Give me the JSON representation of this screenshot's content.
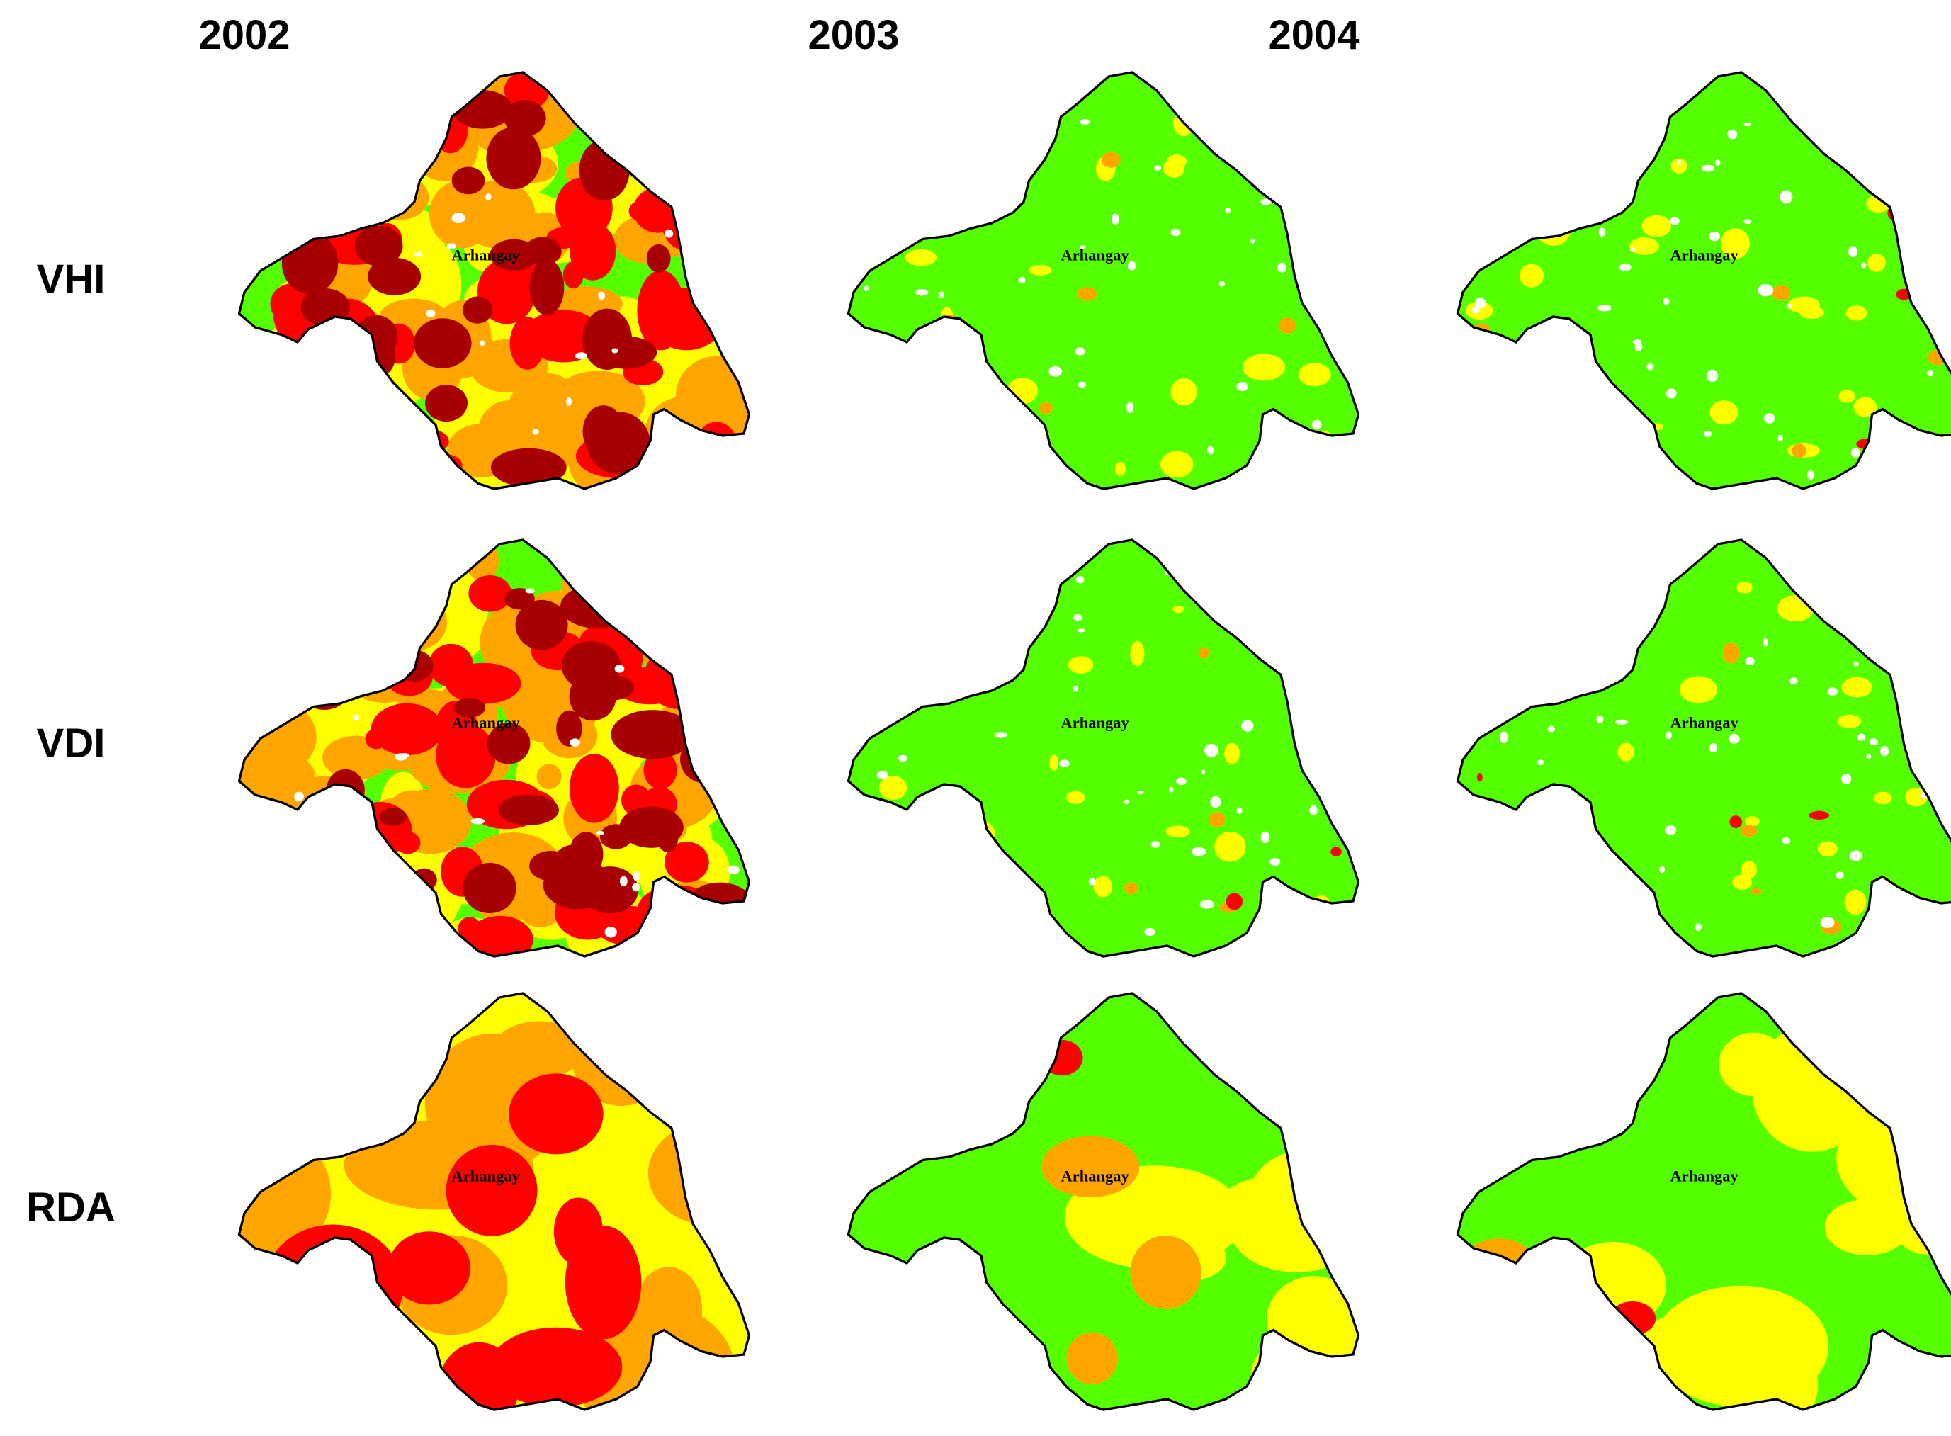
{
  "columns": [
    "2002",
    "2003",
    "2004"
  ],
  "rows": [
    "VHI",
    "VDI",
    "RDA"
  ],
  "region_label": "Arhangay",
  "palette": {
    "no_drought": "#55ff00",
    "mild": "#ffff00",
    "moderate": "#ffa500",
    "severe": "#ff0000",
    "extreme": "#a80000",
    "no_data": "#ffffff",
    "outline": "#000000"
  },
  "maps": [
    {
      "row": "VHI",
      "year": "2002",
      "pattern": "severe-widespread"
    },
    {
      "row": "VHI",
      "year": "2003",
      "pattern": "mostly-no-drought"
    },
    {
      "row": "VHI",
      "year": "2004",
      "pattern": "mostly-no-drought"
    },
    {
      "row": "VDI",
      "year": "2002",
      "pattern": "severe-widespread"
    },
    {
      "row": "VDI",
      "year": "2003",
      "pattern": "mostly-no-drought"
    },
    {
      "row": "VDI",
      "year": "2004",
      "pattern": "mostly-no-drought"
    },
    {
      "row": "RDA",
      "year": "2002",
      "pattern": "mild-to-severe"
    },
    {
      "row": "RDA",
      "year": "2003",
      "pattern": "mixed"
    },
    {
      "row": "RDA",
      "year": "2004",
      "pattern": "mixed"
    }
  ]
}
